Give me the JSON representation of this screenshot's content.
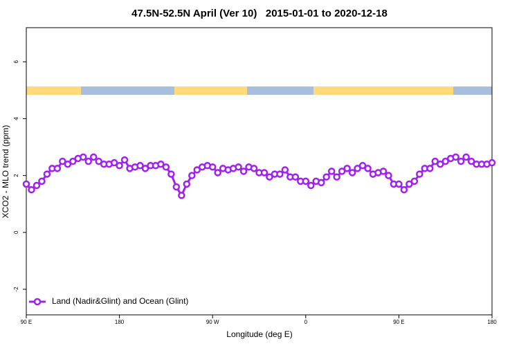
{
  "chart_data": {
    "type": "line",
    "title": "47.5N-52.5N April (Ver 10)   2015-01-01 to 2020-12-18",
    "x_label": "Longitude (deg E)",
    "y_label": "XCO2 - MLO trend (ppm)",
    "x": [
      90,
      95,
      100,
      105,
      110,
      115,
      120,
      125,
      130,
      135,
      140,
      145,
      150,
      155,
      160,
      165,
      170,
      175,
      180,
      185,
      190,
      195,
      200,
      205,
      210,
      215,
      220,
      225,
      230,
      235,
      240,
      245,
      250,
      255,
      260,
      265,
      270,
      275,
      280,
      285,
      290,
      295,
      300,
      305,
      310,
      315,
      320,
      325,
      330,
      335,
      340,
      345,
      350,
      355,
      360,
      365,
      370,
      375,
      380,
      385,
      390,
      395,
      400,
      405,
      410,
      415,
      420,
      425,
      430,
      435,
      440,
      445,
      450,
      455,
      460,
      465,
      470,
      475,
      480,
      485,
      490,
      495,
      500,
      505,
      510,
      515,
      520,
      525,
      530,
      535,
      540
    ],
    "series": [
      {
        "name": "Land (Nadir&Glint) and Ocean (Glint)",
        "color": "#a020f0",
        "values": [
          1.7,
          1.5,
          1.65,
          1.8,
          2.05,
          2.25,
          2.25,
          2.5,
          2.4,
          2.5,
          2.6,
          2.65,
          2.5,
          2.65,
          2.5,
          2.4,
          2.4,
          2.45,
          2.35,
          2.55,
          2.25,
          2.3,
          2.35,
          2.25,
          2.35,
          2.35,
          2.4,
          2.3,
          2.05,
          1.6,
          1.3,
          1.7,
          2.0,
          2.2,
          2.3,
          2.35,
          2.3,
          2.1,
          2.25,
          2.2,
          2.25,
          2.3,
          2.15,
          2.3,
          2.25,
          2.1,
          2.1,
          1.95,
          2.05,
          2.05,
          2.2,
          1.95,
          1.95,
          1.8,
          1.8,
          1.65,
          1.8,
          1.75,
          1.95,
          2.15,
          1.95,
          2.15,
          2.25,
          2.1,
          2.25,
          2.35,
          2.25,
          2.05,
          2.1,
          2.15,
          2.0,
          1.7,
          1.7,
          1.5,
          1.7,
          1.8,
          2.05,
          2.25,
          2.25,
          2.5,
          2.4,
          2.5,
          2.6,
          2.65,
          2.5,
          2.65,
          2.5,
          2.4,
          2.4,
          2.4,
          2.45
        ]
      }
    ],
    "xlim": [
      90,
      540
    ],
    "xticks": [
      {
        "value": 90,
        "label": "90 E"
      },
      {
        "value": 180,
        "label": "180"
      },
      {
        "value": 270,
        "label": "90 W"
      },
      {
        "value": 360,
        "label": "0"
      },
      {
        "value": 450,
        "label": "90 E"
      },
      {
        "value": 540,
        "label": "180"
      }
    ],
    "ylim": [
      -2.9,
      7.2
    ],
    "yticks": [
      -2,
      0,
      2,
      4,
      6
    ],
    "legend": "bottom-left"
  }
}
